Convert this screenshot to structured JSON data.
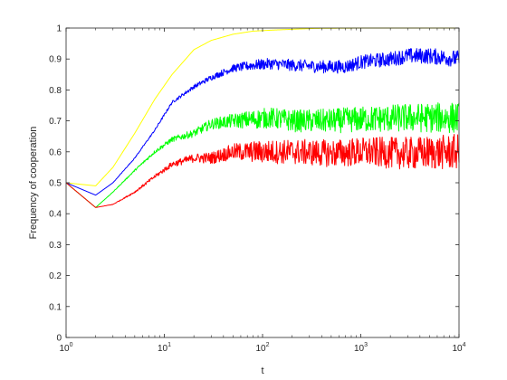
{
  "chart_data": {
    "type": "line",
    "xlabel": "t",
    "ylabel": "Frequency of cooperation",
    "xscale": "log",
    "xlim": [
      1,
      10000
    ],
    "ylim": [
      0,
      1
    ],
    "grid": false,
    "legend": "none",
    "x_ticks": [
      {
        "value": 1,
        "base": "10",
        "exp": "0"
      },
      {
        "value": 10,
        "base": "10",
        "exp": "1"
      },
      {
        "value": 100,
        "base": "10",
        "exp": "2"
      },
      {
        "value": 1000,
        "base": "10",
        "exp": "3"
      },
      {
        "value": 10000,
        "base": "10",
        "exp": "4"
      }
    ],
    "y_ticks": [
      "0",
      "0.1",
      "0.2",
      "0.3",
      "0.4",
      "0.5",
      "0.6",
      "0.7",
      "0.8",
      "0.9",
      "1"
    ],
    "series": [
      {
        "color": "#ffff00",
        "noise": 0.0,
        "x": [
          1,
          2,
          3,
          5,
          8,
          12,
          20,
          30,
          50,
          80,
          120,
          200,
          350,
          1000,
          10000
        ],
        "y": [
          0.5,
          0.49,
          0.55,
          0.66,
          0.77,
          0.85,
          0.93,
          0.96,
          0.98,
          0.99,
          0.993,
          0.996,
          0.999,
          1.0,
          1.0
        ]
      },
      {
        "color": "#0000ff",
        "noise": 0.008,
        "x": [
          1,
          2,
          3,
          5,
          8,
          12,
          20,
          30,
          50,
          80,
          120,
          200,
          400,
          700,
          1000,
          2000,
          3000,
          5000,
          10000
        ],
        "y": [
          0.5,
          0.46,
          0.5,
          0.58,
          0.67,
          0.76,
          0.81,
          0.84,
          0.87,
          0.88,
          0.885,
          0.88,
          0.875,
          0.875,
          0.89,
          0.9,
          0.91,
          0.91,
          0.9
        ]
      },
      {
        "color": "#00ff00",
        "noise": 0.015,
        "x": [
          1,
          2,
          3,
          5,
          8,
          12,
          20,
          30,
          50,
          80,
          120,
          200,
          500,
          1000,
          3000,
          10000
        ],
        "y": [
          0.5,
          0.42,
          0.47,
          0.54,
          0.6,
          0.64,
          0.66,
          0.69,
          0.7,
          0.705,
          0.71,
          0.7,
          0.7,
          0.705,
          0.71,
          0.71
        ]
      },
      {
        "color": "#ff0000",
        "noise": 0.017,
        "x": [
          1,
          2,
          3,
          5,
          8,
          12,
          20,
          30,
          50,
          80,
          120,
          200,
          500,
          1000,
          3000,
          10000
        ],
        "y": [
          0.5,
          0.42,
          0.43,
          0.47,
          0.52,
          0.56,
          0.58,
          0.58,
          0.6,
          0.6,
          0.6,
          0.6,
          0.595,
          0.6,
          0.595,
          0.6
        ]
      }
    ]
  }
}
